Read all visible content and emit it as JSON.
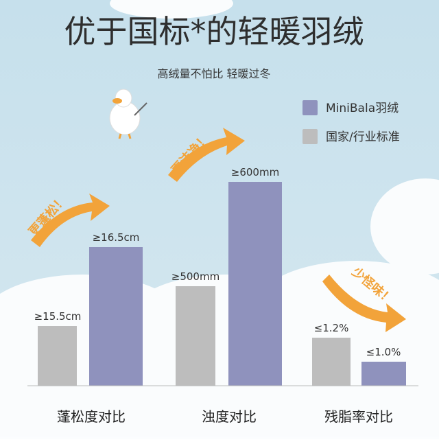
{
  "header": {
    "title": "优于国标*的轻暖羽绒",
    "subtitle": "高绒量不怕比 轻暖过冬"
  },
  "legend": [
    {
      "label": "MiniBala羽绒",
      "color": "#8f92bd"
    },
    {
      "label": "国家/行业标准",
      "color": "#bdbdbd"
    }
  ],
  "groups": [
    {
      "label": "蓬松度对比",
      "standard": "≥15.5cm",
      "minibala": "≥16.5cm",
      "note": "更蓬松！"
    },
    {
      "label": "浊度对比",
      "standard": "≥500mm",
      "minibala": "≥600mm",
      "note": "更洁净！"
    },
    {
      "label": "残脂率对比",
      "standard": "≤1.2%",
      "minibala": "≤1.0%",
      "note": "少怪味！"
    }
  ]
}
